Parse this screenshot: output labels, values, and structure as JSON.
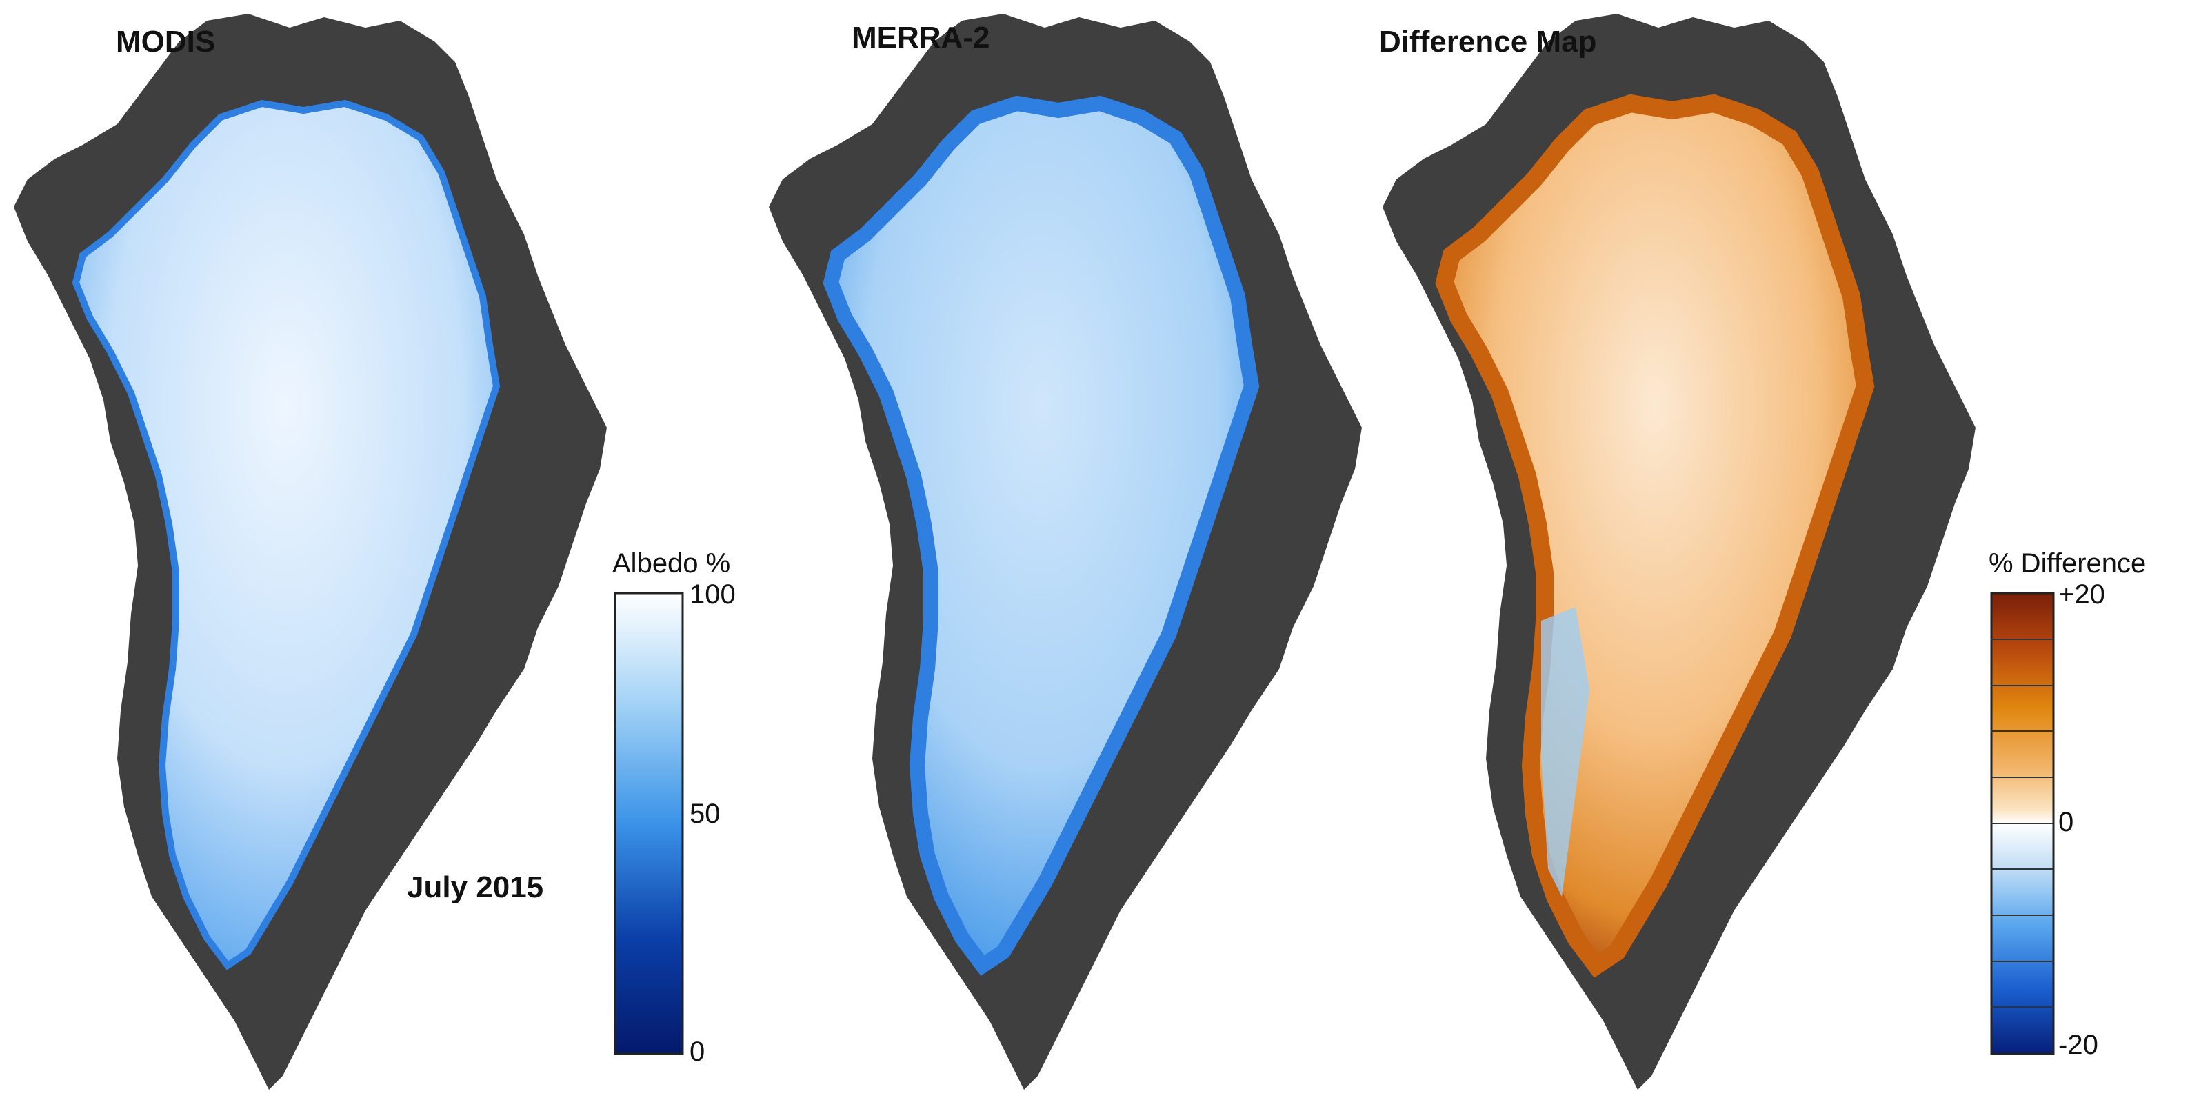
{
  "panels": [
    {
      "title": "MODIS"
    },
    {
      "title": "MERRA-2"
    },
    {
      "title": "Difference Map"
    }
  ],
  "date_label": "July 2015",
  "albedo_legend": {
    "title": "Albedo %",
    "ticks": [
      "100",
      "50",
      "0"
    ],
    "values": [
      100,
      50,
      0
    ],
    "colors": [
      "#ffffff",
      "#9fd0f5",
      "#3b93e8",
      "#0b3fa8",
      "#041a6b"
    ]
  },
  "difference_legend": {
    "title": "% Difference",
    "ticks": [
      "+20",
      "0",
      "-20"
    ],
    "values": [
      20,
      0,
      -20
    ],
    "colors": [
      "#7a1f0a",
      "#b8490e",
      "#e0860f",
      "#f2b46a",
      "#fbe3c2",
      "#ffffff",
      "#bfdcf5",
      "#5aa6ee",
      "#1a5fcf",
      "#071f7a"
    ]
  },
  "colors": {
    "land": "#3f3f3f",
    "ocean": "#ffffff",
    "modis_ice": "#c4e0fa",
    "merra_ice": "#b2d7f7",
    "diff_ice": "#f7c58a",
    "edge_blue": "#2e7fe0",
    "edge_orange": "#c9620f"
  }
}
